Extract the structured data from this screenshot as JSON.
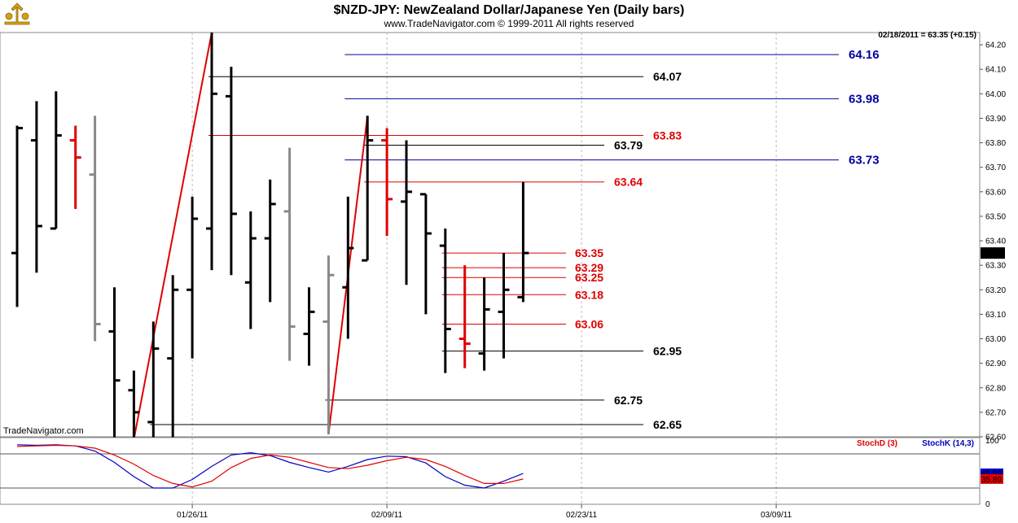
{
  "header": {
    "title": "$NZD-JPY:  NewZealand Dollar/Japanese Yen  (Daily bars)",
    "subtitle": "www.TradeNavigator.com © 1999-2011 All rights reserved",
    "quote": "02/18/2011 = 63.35 (+0.15)",
    "watermark": "TradeNavigator.com"
  },
  "colors": {
    "bull": "#000000",
    "bear": "#e00000",
    "neutral": "#888888",
    "fib_line": "#e00000",
    "target_line": "#0000a0",
    "level_black": "#000000",
    "stoch_d": "#e00000",
    "stoch_k": "#0000c0"
  },
  "chart_data": [
    {
      "type": "ohlc",
      "title": "$NZD-JPY:  NewZealand Dollar/Japanese Yen  (Daily bars)",
      "ylim": [
        62.6,
        64.25
      ],
      "y_ticks": [
        "64.20",
        "64.10",
        "64.00",
        "63.90",
        "63.80",
        "63.70",
        "63.60",
        "63.50",
        "63.40",
        "63.30",
        "63.20",
        "63.10",
        "63.00",
        "62.90",
        "62.80",
        "62.70",
        "62.60"
      ],
      "x_ticks": [
        "01/26/11",
        "02/09/11",
        "02/23/11",
        "03/09/11"
      ],
      "last_price_label": "63.35",
      "bars": [
        {
          "o": 63.35,
          "h": 63.87,
          "l": 63.13,
          "c": 63.86,
          "color": "bull"
        },
        {
          "o": 63.81,
          "h": 63.97,
          "l": 63.27,
          "c": 63.46,
          "color": "bull"
        },
        {
          "o": 63.45,
          "h": 64.01,
          "l": 63.45,
          "c": 63.83,
          "color": "bull"
        },
        {
          "o": 63.81,
          "h": 63.87,
          "l": 63.53,
          "c": 63.74,
          "color": "bear"
        },
        {
          "o": 63.67,
          "h": 63.91,
          "l": 62.99,
          "c": 63.06,
          "color": "neutral"
        },
        {
          "o": 63.03,
          "h": 63.21,
          "l": 62.59,
          "c": 62.83,
          "color": "bull"
        },
        {
          "o": 62.79,
          "h": 62.87,
          "l": 62.59,
          "c": 62.7,
          "color": "bull"
        },
        {
          "o": 62.66,
          "h": 63.07,
          "l": 62.59,
          "c": 62.96,
          "color": "bull"
        },
        {
          "o": 62.92,
          "h": 63.26,
          "l": 62.59,
          "c": 63.2,
          "color": "bull"
        },
        {
          "o": 63.2,
          "h": 63.58,
          "l": 62.92,
          "c": 63.49,
          "color": "bull"
        },
        {
          "o": 63.45,
          "h": 64.25,
          "l": 63.28,
          "c": 64.0,
          "color": "bull"
        },
        {
          "o": 63.99,
          "h": 64.11,
          "l": 63.26,
          "c": 63.51,
          "color": "bull"
        },
        {
          "o": 63.23,
          "h": 63.52,
          "l": 63.04,
          "c": 63.41,
          "color": "bull"
        },
        {
          "o": 63.41,
          "h": 63.65,
          "l": 63.15,
          "c": 63.55,
          "color": "bull"
        },
        {
          "o": 63.52,
          "h": 63.78,
          "l": 62.91,
          "c": 63.05,
          "color": "neutral"
        },
        {
          "o": 63.02,
          "h": 63.21,
          "l": 62.89,
          "c": 63.11,
          "color": "bull"
        },
        {
          "o": 63.07,
          "h": 63.34,
          "l": 62.61,
          "c": 63.26,
          "color": "neutral"
        },
        {
          "o": 63.21,
          "h": 63.58,
          "l": 63.0,
          "c": 63.37,
          "color": "bull"
        },
        {
          "o": 63.32,
          "h": 63.91,
          "l": 63.32,
          "c": 63.81,
          "color": "bull"
        },
        {
          "o": 63.81,
          "h": 63.86,
          "l": 63.42,
          "c": 63.57,
          "color": "bear"
        },
        {
          "o": 63.56,
          "h": 63.81,
          "l": 63.22,
          "c": 63.6,
          "color": "bull"
        },
        {
          "o": 63.59,
          "h": 63.59,
          "l": 63.1,
          "c": 63.43,
          "color": "bull"
        },
        {
          "o": 63.38,
          "h": 63.45,
          "l": 62.86,
          "c": 63.04,
          "color": "bull"
        },
        {
          "o": 63.0,
          "h": 63.3,
          "l": 62.88,
          "c": 62.98,
          "color": "bear"
        },
        {
          "o": 62.94,
          "h": 63.25,
          "l": 62.87,
          "c": 63.12,
          "color": "bull"
        },
        {
          "o": 63.11,
          "h": 63.35,
          "l": 62.92,
          "c": 63.2,
          "color": "bull"
        },
        {
          "o": 63.17,
          "h": 63.64,
          "l": 63.15,
          "c": 63.35,
          "color": "bull"
        }
      ],
      "trendlines": [
        {
          "from": [
            6,
            62.59
          ],
          "to": [
            10,
            64.25
          ]
        },
        {
          "from": [
            16,
            62.61
          ],
          "to": [
            18,
            63.91
          ]
        }
      ],
      "levels": [
        {
          "label": "64.16",
          "value": 64.16,
          "from_bar": 17,
          "color": "target_line",
          "size": "big"
        },
        {
          "label": "64.07",
          "value": 64.07,
          "from_bar": 10,
          "color": "level_black",
          "size": "normal"
        },
        {
          "label": "63.98",
          "value": 63.98,
          "from_bar": 17,
          "color": "target_line",
          "size": "big"
        },
        {
          "label": "63.83",
          "value": 63.83,
          "from_bar": 10,
          "color": "fib_line",
          "size": "normal"
        },
        {
          "label": "63.79",
          "value": 63.79,
          "from_bar": 18,
          "color": "level_black",
          "size": "normal"
        },
        {
          "label": "63.73",
          "value": 63.73,
          "from_bar": 17,
          "color": "target_line",
          "size": "big"
        },
        {
          "label": "63.64",
          "value": 63.64,
          "from_bar": 18,
          "color": "fib_line",
          "size": "normal"
        },
        {
          "label": "63.35",
          "value": 63.35,
          "from_bar": 22,
          "color": "fib_line",
          "size": "normal"
        },
        {
          "label": "63.29",
          "value": 63.29,
          "from_bar": 22,
          "color": "fib_line",
          "size": "normal"
        },
        {
          "label": "63.25",
          "value": 63.25,
          "from_bar": 22,
          "color": "fib_line",
          "size": "normal"
        },
        {
          "label": "63.18",
          "value": 63.18,
          "from_bar": 22,
          "color": "fib_line",
          "size": "normal"
        },
        {
          "label": "63.06",
          "value": 63.06,
          "from_bar": 22,
          "color": "fib_line",
          "size": "normal"
        },
        {
          "label": "62.95",
          "value": 62.95,
          "from_bar": 22,
          "color": "level_black",
          "size": "normal"
        },
        {
          "label": "62.75",
          "value": 62.75,
          "from_bar": 16,
          "color": "level_black",
          "size": "normal"
        },
        {
          "label": "62.65",
          "value": 62.65,
          "from_bar": 7,
          "color": "level_black",
          "size": "normal"
        }
      ]
    },
    {
      "type": "line",
      "title": "",
      "ylim": [
        0,
        100
      ],
      "y_ticks": [
        "100",
        "0"
      ],
      "legend": [
        "StochD (3)",
        "StochK (14,3)"
      ],
      "series": [
        {
          "name": "StochK (14,3)",
          "color": "stoch_k",
          "values": [
            96,
            95,
            96,
            94,
            85,
            65,
            40,
            20,
            20,
            35,
            58,
            78,
            82,
            77,
            65,
            56,
            48,
            58,
            70,
            76,
            75,
            64,
            40,
            25,
            20,
            32,
            45.66
          ]
        },
        {
          "name": "StochD (3)",
          "color": "stoch_d",
          "values": [
            93,
            94,
            95,
            94,
            90,
            78,
            62,
            42,
            28,
            22,
            32,
            56,
            72,
            78,
            74,
            65,
            56,
            54,
            60,
            68,
            74,
            70,
            58,
            42,
            28,
            28,
            35.89
          ]
        }
      ],
      "last_labels": [
        "45.66",
        "35.89"
      ]
    }
  ]
}
